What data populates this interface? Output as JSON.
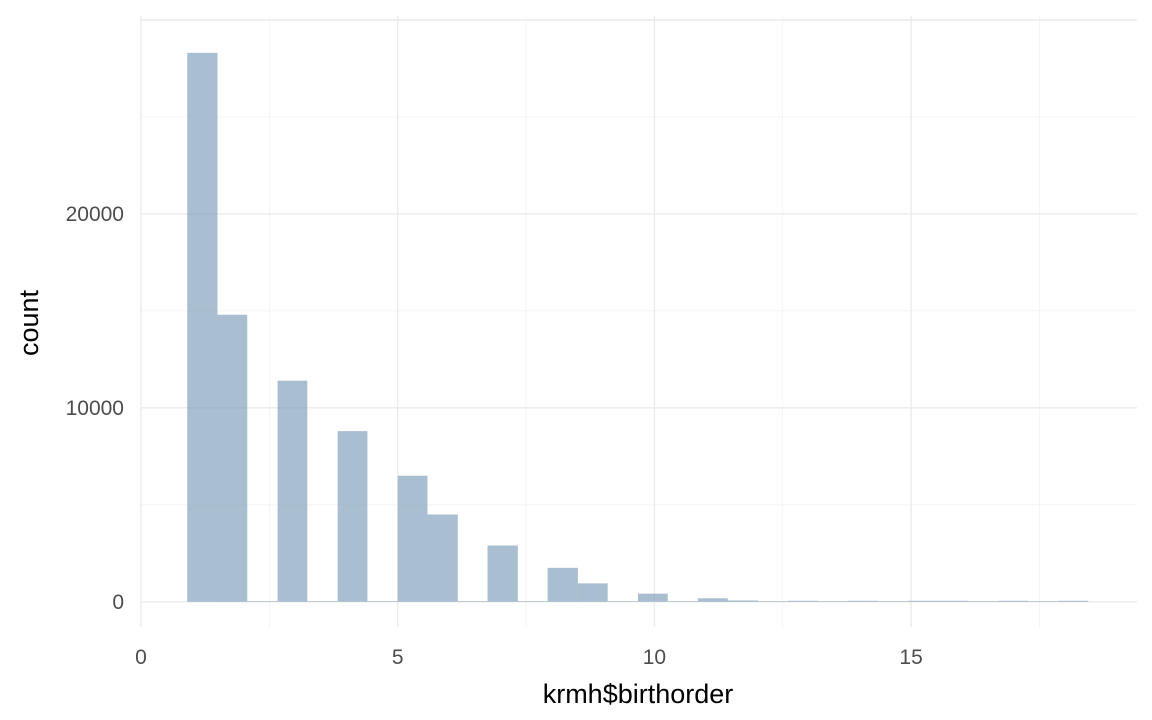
{
  "chart_data": {
    "type": "bar",
    "subtype": "histogram",
    "title": "",
    "xlabel": "krmh$birthorder",
    "ylabel": "count",
    "xlim": [
      0,
      19.4
    ],
    "ylim": [
      -1300,
      30200
    ],
    "x_ticks": [
      0,
      5,
      10,
      15
    ],
    "x_tick_labels": [
      "0",
      "5",
      "10",
      "15"
    ],
    "y_ticks": [
      0,
      10000,
      20000
    ],
    "y_tick_labels": [
      "0",
      "10000",
      "20000"
    ],
    "grid": true,
    "legend": "none",
    "bins": [
      {
        "x0": 0.9,
        "x1": 1.49,
        "count": 28300
      },
      {
        "x0": 1.49,
        "x1": 2.07,
        "count": 14800
      },
      {
        "x0": 2.07,
        "x1": 2.66,
        "count": 0
      },
      {
        "x0": 2.66,
        "x1": 3.24,
        "count": 11400
      },
      {
        "x0": 3.24,
        "x1": 3.83,
        "count": 0
      },
      {
        "x0": 3.83,
        "x1": 4.41,
        "count": 8800
      },
      {
        "x0": 4.41,
        "x1": 5.0,
        "count": 0
      },
      {
        "x0": 5.0,
        "x1": 5.58,
        "count": 6500
      },
      {
        "x0": 5.58,
        "x1": 6.17,
        "count": 4500
      },
      {
        "x0": 6.17,
        "x1": 6.75,
        "count": 0
      },
      {
        "x0": 6.75,
        "x1": 7.34,
        "count": 2900
      },
      {
        "x0": 7.34,
        "x1": 7.92,
        "count": 0
      },
      {
        "x0": 7.92,
        "x1": 8.51,
        "count": 1750
      },
      {
        "x0": 8.51,
        "x1": 9.09,
        "count": 950
      },
      {
        "x0": 9.09,
        "x1": 9.68,
        "count": 0
      },
      {
        "x0": 9.68,
        "x1": 10.26,
        "count": 420
      },
      {
        "x0": 10.26,
        "x1": 10.85,
        "count": 0
      },
      {
        "x0": 10.85,
        "x1": 11.43,
        "count": 180
      },
      {
        "x0": 11.43,
        "x1": 12.02,
        "count": 70
      },
      {
        "x0": 12.02,
        "x1": 12.6,
        "count": 0
      },
      {
        "x0": 12.6,
        "x1": 13.19,
        "count": 30
      },
      {
        "x0": 13.19,
        "x1": 13.77,
        "count": 0
      },
      {
        "x0": 13.77,
        "x1": 14.36,
        "count": 15
      },
      {
        "x0": 14.36,
        "x1": 14.94,
        "count": 0
      },
      {
        "x0": 14.94,
        "x1": 15.53,
        "count": 5
      },
      {
        "x0": 15.53,
        "x1": 16.11,
        "count": 3
      },
      {
        "x0": 16.11,
        "x1": 16.7,
        "count": 0
      },
      {
        "x0": 16.7,
        "x1": 17.28,
        "count": 2
      },
      {
        "x0": 17.28,
        "x1": 17.87,
        "count": 0
      },
      {
        "x0": 17.87,
        "x1": 18.45,
        "count": 1
      }
    ],
    "colors": {
      "bar_fill": "#7d9bb8",
      "bar_opacity": 0.65,
      "grid_major": "#ebebeb",
      "grid_minor": "#f2f2f2"
    }
  }
}
